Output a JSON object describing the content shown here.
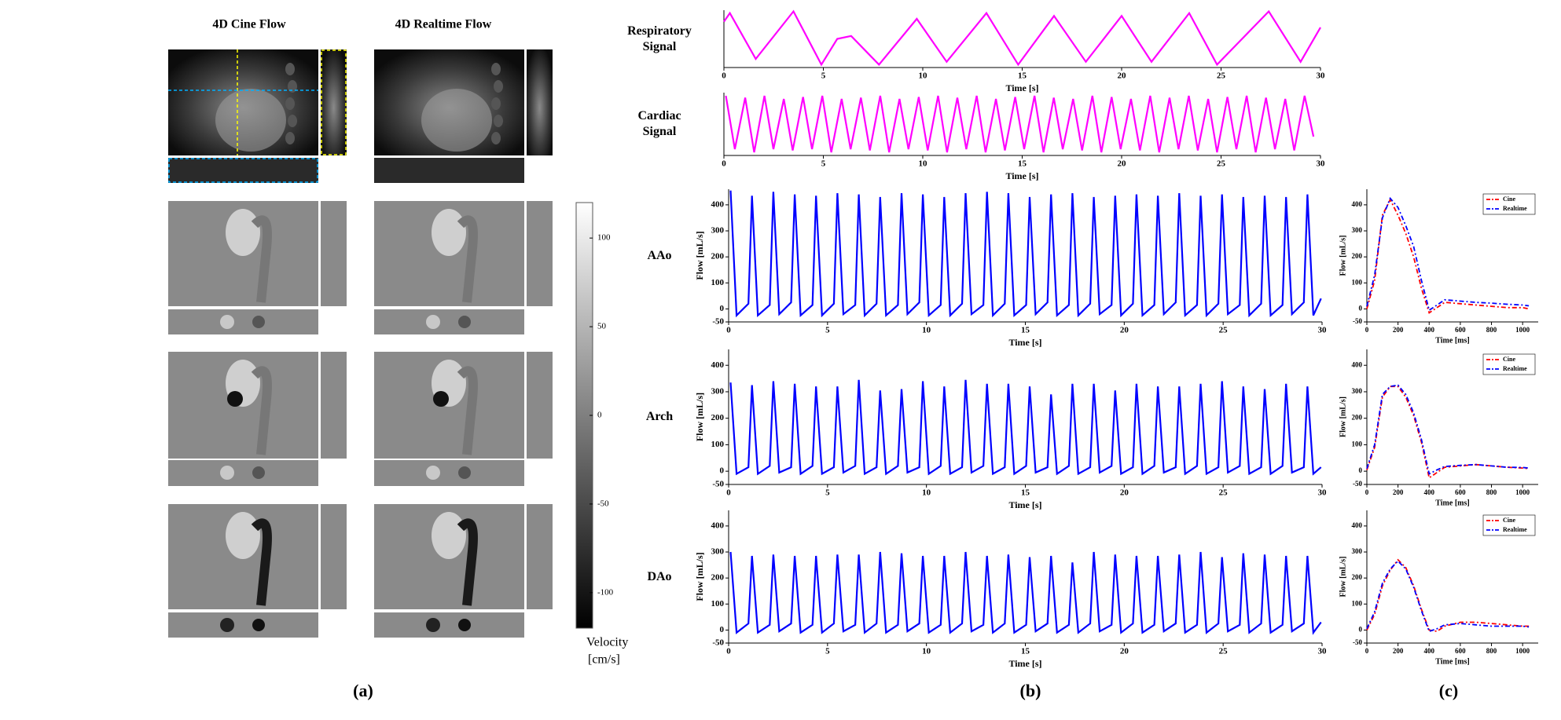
{
  "panel_a": {
    "columns": [
      "4D Cine Flow",
      "4D Realtime Flow"
    ],
    "colorbar": {
      "lim": [
        -120,
        120
      ],
      "ticks": [
        100,
        50,
        0,
        -50,
        -100
      ],
      "label": [
        "Velocity",
        "[cm/s]"
      ]
    }
  },
  "panel_labels": [
    "(a)",
    "(b)",
    "(c)"
  ],
  "chart_data": [
    {
      "type": "line",
      "title": "Respiratory Signal",
      "xlabel": "Time [s]",
      "color": "#ff00ff",
      "xlim": [
        0,
        30
      ],
      "xticks": [
        0,
        5,
        10,
        15,
        20,
        25,
        30
      ],
      "ylim": [
        0,
        1
      ],
      "x": [
        0,
        0.3,
        1.6,
        3.5,
        4.9,
        5.7,
        6.4,
        7.8,
        9.7,
        11.2,
        13.2,
        14.8,
        16.6,
        18.2,
        20.0,
        21.5,
        23.4,
        24.8,
        27.4,
        29.0,
        30
      ],
      "values": [
        0.8,
        0.95,
        0.15,
        0.98,
        0.05,
        0.5,
        0.55,
        0.05,
        0.85,
        0.1,
        0.95,
        0.05,
        0.9,
        0.1,
        0.9,
        0.1,
        0.95,
        0.05,
        0.98,
        0.1,
        0.7
      ]
    },
    {
      "type": "line",
      "title": "Cardiac Signal",
      "xlabel": "Time [s]",
      "color": "#ff00ff",
      "xlim": [
        0,
        30
      ],
      "xticks": [
        0,
        5,
        10,
        15,
        20,
        25,
        30
      ],
      "ylim": [
        0,
        1
      ],
      "x": [
        0.1,
        0.55,
        1.07,
        1.52,
        2.04,
        2.49,
        3.01,
        3.46,
        3.98,
        4.43,
        4.95,
        5.4,
        5.92,
        6.37,
        6.89,
        7.34,
        7.86,
        8.31,
        8.83,
        9.28,
        9.8,
        10.25,
        10.77,
        11.22,
        11.74,
        12.19,
        12.71,
        13.16,
        13.68,
        14.13,
        14.65,
        15.1,
        15.62,
        16.07,
        16.59,
        17.04,
        17.56,
        18.01,
        18.53,
        18.98,
        19.5,
        19.95,
        20.47,
        20.92,
        21.44,
        21.89,
        22.41,
        22.86,
        23.38,
        23.83,
        24.35,
        24.8,
        25.32,
        25.77,
        26.29,
        26.74,
        27.26,
        27.71,
        28.23,
        28.68,
        29.2,
        29.65
      ],
      "values": [
        0.95,
        0.1,
        0.92,
        0.05,
        0.95,
        0.1,
        0.9,
        0.08,
        0.93,
        0.1,
        0.95,
        0.05,
        0.9,
        0.1,
        0.92,
        0.08,
        0.95,
        0.05,
        0.9,
        0.1,
        0.93,
        0.08,
        0.95,
        0.05,
        0.92,
        0.1,
        0.95,
        0.05,
        0.9,
        0.08,
        0.93,
        0.1,
        0.95,
        0.05,
        0.92,
        0.1,
        0.9,
        0.08,
        0.95,
        0.05,
        0.93,
        0.1,
        0.9,
        0.08,
        0.95,
        0.05,
        0.92,
        0.1,
        0.95,
        0.08,
        0.9,
        0.05,
        0.93,
        0.1,
        0.95,
        0.05,
        0.92,
        0.1,
        0.9,
        0.08,
        0.95,
        0.3
      ]
    },
    {
      "type": "line",
      "title": "AAo",
      "xlabel": "Time [s]",
      "ylabel": "Flow [mL/s]",
      "color": "#0000ff",
      "xlim": [
        0,
        30
      ],
      "xticks": [
        0,
        5,
        10,
        15,
        20,
        25,
        30
      ],
      "ylim": [
        -50,
        460
      ],
      "yticks": [
        -50,
        0,
        100,
        200,
        300,
        400
      ],
      "x": [
        0.1,
        0.4,
        1.0,
        1.18,
        1.48,
        2.08,
        2.26,
        2.56,
        3.16,
        3.34,
        3.64,
        4.24,
        4.42,
        4.72,
        5.32,
        5.5,
        5.8,
        6.4,
        6.58,
        6.88,
        7.48,
        7.66,
        7.96,
        8.56,
        8.74,
        9.04,
        9.64,
        9.82,
        10.12,
        10.72,
        10.9,
        11.2,
        11.8,
        11.98,
        12.28,
        12.88,
        13.06,
        13.36,
        13.96,
        14.14,
        14.44,
        15.04,
        15.22,
        15.52,
        16.12,
        16.3,
        16.6,
        17.2,
        17.38,
        17.68,
        18.28,
        18.46,
        18.76,
        19.36,
        19.54,
        19.84,
        20.44,
        20.62,
        20.92,
        21.52,
        21.7,
        22.0,
        22.6,
        22.78,
        23.08,
        23.68,
        23.86,
        24.16,
        24.76,
        24.94,
        25.24,
        25.84,
        26.02,
        26.32,
        26.92,
        27.1,
        27.4,
        28.0,
        28.18,
        28.48,
        29.08,
        29.26,
        29.56,
        29.95
      ],
      "values": [
        455,
        -25,
        20,
        435,
        -25,
        15,
        450,
        -20,
        25,
        440,
        -25,
        15,
        435,
        -25,
        20,
        445,
        -20,
        15,
        440,
        -25,
        20,
        430,
        -25,
        15,
        445,
        -20,
        25,
        440,
        -25,
        15,
        430,
        -25,
        20,
        445,
        -20,
        15,
        450,
        -25,
        20,
        445,
        -25,
        15,
        430,
        -20,
        25,
        440,
        -25,
        15,
        445,
        -25,
        20,
        430,
        -20,
        15,
        435,
        -25,
        20,
        440,
        -25,
        15,
        435,
        -20,
        25,
        445,
        -25,
        15,
        435,
        -25,
        20,
        440,
        -20,
        15,
        430,
        -25,
        20,
        435,
        -25,
        15,
        430,
        -20,
        25,
        440,
        -25,
        40
      ]
    },
    {
      "type": "line",
      "title": "Arch",
      "xlabel": "Time [s]",
      "ylabel": "Flow [mL/s]",
      "color": "#0000ff",
      "xlim": [
        0,
        30
      ],
      "xticks": [
        0,
        5,
        10,
        15,
        20,
        25,
        30
      ],
      "ylim": [
        -50,
        460
      ],
      "yticks": [
        -50,
        0,
        100,
        200,
        300,
        400
      ],
      "x": [
        0.1,
        0.4,
        1.0,
        1.18,
        1.48,
        2.08,
        2.26,
        2.56,
        3.16,
        3.34,
        3.64,
        4.24,
        4.42,
        4.72,
        5.32,
        5.5,
        5.8,
        6.4,
        6.58,
        6.88,
        7.48,
        7.66,
        7.96,
        8.56,
        8.74,
        9.04,
        9.64,
        9.82,
        10.12,
        10.72,
        10.9,
        11.2,
        11.8,
        11.98,
        12.28,
        12.88,
        13.06,
        13.36,
        13.96,
        14.14,
        14.44,
        15.04,
        15.22,
        15.52,
        16.12,
        16.3,
        16.6,
        17.2,
        17.38,
        17.68,
        18.28,
        18.46,
        18.76,
        19.36,
        19.54,
        19.84,
        20.44,
        20.62,
        20.92,
        21.52,
        21.7,
        22.0,
        22.6,
        22.78,
        23.08,
        23.68,
        23.86,
        24.16,
        24.76,
        24.94,
        25.24,
        25.84,
        26.02,
        26.32,
        26.92,
        27.1,
        27.4,
        28.0,
        28.18,
        28.48,
        29.08,
        29.26,
        29.56,
        29.95
      ],
      "values": [
        335,
        -10,
        15,
        325,
        -10,
        20,
        340,
        -5,
        15,
        330,
        -10,
        20,
        320,
        -10,
        15,
        320,
        -5,
        20,
        345,
        -10,
        15,
        305,
        -10,
        20,
        310,
        -5,
        15,
        340,
        -10,
        20,
        320,
        -10,
        15,
        345,
        -5,
        20,
        330,
        -10,
        15,
        330,
        -10,
        20,
        320,
        -5,
        15,
        290,
        -10,
        20,
        330,
        -10,
        15,
        330,
        -5,
        20,
        305,
        -10,
        15,
        330,
        -10,
        20,
        320,
        -5,
        15,
        320,
        -10,
        20,
        330,
        -10,
        15,
        340,
        -5,
        20,
        320,
        -10,
        15,
        310,
        -10,
        20,
        330,
        -5,
        15,
        320,
        -10,
        15
      ]
    },
    {
      "type": "line",
      "title": "DAo",
      "xlabel": "Time [s]",
      "ylabel": "Flow [mL/s]",
      "color": "#0000ff",
      "xlim": [
        0,
        30
      ],
      "xticks": [
        0,
        5,
        10,
        15,
        20,
        25,
        30
      ],
      "ylim": [
        -50,
        460
      ],
      "yticks": [
        -50,
        0,
        100,
        200,
        300,
        400
      ],
      "x": [
        0.1,
        0.4,
        1.0,
        1.18,
        1.48,
        2.08,
        2.26,
        2.56,
        3.16,
        3.34,
        3.64,
        4.24,
        4.42,
        4.72,
        5.32,
        5.5,
        5.8,
        6.4,
        6.58,
        6.88,
        7.48,
        7.66,
        7.96,
        8.56,
        8.74,
        9.04,
        9.64,
        9.82,
        10.12,
        10.72,
        10.9,
        11.2,
        11.8,
        11.98,
        12.28,
        12.88,
        13.06,
        13.36,
        13.96,
        14.14,
        14.44,
        15.04,
        15.22,
        15.52,
        16.12,
        16.3,
        16.6,
        17.2,
        17.38,
        17.68,
        18.28,
        18.46,
        18.76,
        19.36,
        19.54,
        19.84,
        20.44,
        20.62,
        20.92,
        21.52,
        21.7,
        22.0,
        22.6,
        22.78,
        23.08,
        23.68,
        23.86,
        24.16,
        24.76,
        24.94,
        25.24,
        25.84,
        26.02,
        26.32,
        26.92,
        27.1,
        27.4,
        28.0,
        28.18,
        28.48,
        29.08,
        29.26,
        29.56,
        29.95
      ],
      "values": [
        300,
        -10,
        25,
        285,
        -10,
        20,
        290,
        -5,
        25,
        285,
        -10,
        20,
        285,
        -10,
        25,
        290,
        -5,
        20,
        290,
        -10,
        25,
        300,
        -10,
        20,
        295,
        -5,
        25,
        285,
        -10,
        20,
        285,
        -10,
        25,
        300,
        -5,
        20,
        285,
        -10,
        25,
        290,
        -10,
        20,
        280,
        -5,
        25,
        285,
        -10,
        20,
        260,
        -10,
        25,
        300,
        -5,
        20,
        290,
        -10,
        25,
        285,
        -10,
        20,
        285,
        -5,
        25,
        290,
        -10,
        20,
        300,
        -10,
        25,
        280,
        -5,
        20,
        295,
        -10,
        25,
        290,
        -10,
        20,
        285,
        -5,
        25,
        285,
        -10,
        30
      ]
    },
    {
      "type": "line",
      "xlabel": "Time [ms]",
      "ylabel": "Flow [mL/s]",
      "legend": "upper right",
      "xlim": [
        0,
        1100
      ],
      "xticks": [
        0,
        200,
        400,
        600,
        800,
        1000
      ],
      "ylim": [
        -50,
        460
      ],
      "yticks": [
        -50,
        0,
        100,
        200,
        300,
        400
      ],
      "x": [
        0,
        50,
        100,
        150,
        200,
        250,
        300,
        350,
        400,
        450,
        500,
        600,
        700,
        800,
        900,
        1000,
        1040
      ],
      "series": [
        {
          "name": "Cine",
          "color": "#ff0000",
          "values": [
            0,
            110,
            360,
            420,
            360,
            290,
            200,
            80,
            -15,
            5,
            25,
            20,
            15,
            10,
            5,
            5,
            0
          ]
        },
        {
          "name": "Realtime",
          "color": "#0000ff",
          "values": [
            10,
            130,
            350,
            425,
            390,
            320,
            240,
            110,
            -5,
            15,
            35,
            30,
            25,
            22,
            18,
            15,
            12
          ]
        }
      ]
    },
    {
      "type": "line",
      "xlabel": "Time [ms]",
      "ylabel": "Flow [mL/s]",
      "legend": "upper right",
      "xlim": [
        0,
        1100
      ],
      "xticks": [
        0,
        200,
        400,
        600,
        800,
        1000
      ],
      "ylim": [
        -50,
        460
      ],
      "yticks": [
        -50,
        0,
        100,
        200,
        300,
        400
      ],
      "x": [
        0,
        50,
        100,
        150,
        200,
        250,
        300,
        350,
        400,
        450,
        500,
        600,
        700,
        800,
        900,
        1000,
        1040
      ],
      "series": [
        {
          "name": "Cine",
          "color": "#ff0000",
          "values": [
            5,
            90,
            280,
            320,
            320,
            280,
            210,
            110,
            -25,
            -5,
            15,
            20,
            25,
            20,
            15,
            12,
            10
          ]
        },
        {
          "name": "Realtime",
          "color": "#0000ff",
          "values": [
            10,
            100,
            290,
            320,
            325,
            290,
            220,
            120,
            -10,
            5,
            18,
            22,
            25,
            20,
            15,
            14,
            12
          ]
        }
      ]
    },
    {
      "type": "line",
      "xlabel": "Time [ms]",
      "ylabel": "Flow [mL/s]",
      "legend": "upper right",
      "xlim": [
        0,
        1100
      ],
      "xticks": [
        0,
        200,
        400,
        600,
        800,
        1000
      ],
      "ylim": [
        -50,
        460
      ],
      "yticks": [
        -50,
        0,
        100,
        200,
        300,
        400
      ],
      "x": [
        0,
        50,
        100,
        150,
        200,
        250,
        300,
        350,
        400,
        450,
        500,
        600,
        700,
        800,
        900,
        1000,
        1040
      ],
      "series": [
        {
          "name": "Cine",
          "color": "#ff0000",
          "values": [
            0,
            60,
            170,
            230,
            270,
            240,
            170,
            80,
            0,
            -5,
            15,
            30,
            30,
            25,
            20,
            15,
            15
          ]
        },
        {
          "name": "Realtime",
          "color": "#0000ff",
          "values": [
            5,
            70,
            180,
            235,
            265,
            235,
            165,
            75,
            -5,
            5,
            20,
            25,
            20,
            15,
            15,
            15,
            12
          ]
        }
      ]
    }
  ]
}
